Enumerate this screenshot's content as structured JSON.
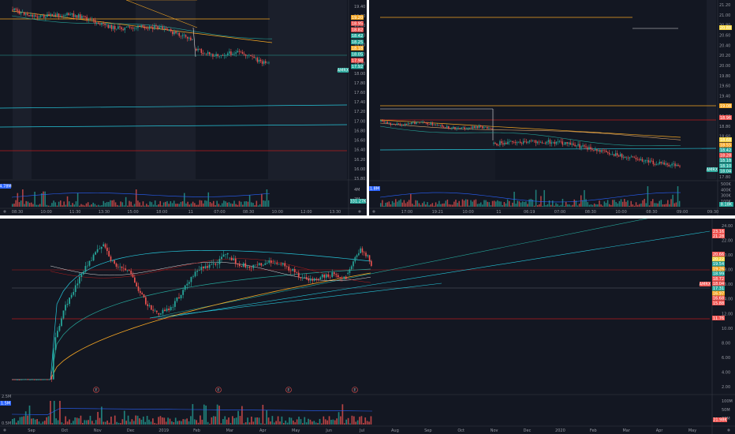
{
  "top_left": {
    "price_ticks": [
      "19.40",
      "19.20",
      "19.00",
      "18.80",
      "18.60",
      "18.40",
      "18.20",
      "18.00",
      "17.80",
      "17.60",
      "17.40",
      "17.20",
      "17.00",
      "16.80",
      "16.60",
      "16.40",
      "16.20",
      "16.00",
      "15.80"
    ],
    "price_tags": [
      "19.20",
      "18.95",
      "18.82",
      "18.42",
      "18.25",
      "18.18",
      "18.05",
      "17.98",
      "17.92"
    ],
    "ticker_tag": "AMRX",
    "vol_ticks": [
      "4M",
      "2M"
    ],
    "vol_left_tag": "4.78M",
    "vol_right_tag": "331.27K",
    "time_ticks": [
      "08:30",
      "10:00",
      "11:30",
      "13:30",
      "15:00",
      "18:00",
      "11",
      "07:00",
      "08:30",
      "10:00",
      "12:00",
      "13:30"
    ]
  },
  "top_right": {
    "price_ticks": [
      "21.20",
      "21.00",
      "20.80",
      "20.60",
      "20.40",
      "20.20",
      "20.00",
      "19.80",
      "19.60",
      "19.40",
      "19.20",
      "19.00",
      "18.80",
      "18.60",
      "18.40",
      "18.20",
      "18.00",
      "17.80"
    ],
    "price_tags": [
      "20.88",
      "19.08",
      "18.96",
      "18.68",
      "18.55",
      "18.42",
      "18.28",
      "18.18",
      "18.10",
      "18.04"
    ],
    "ticker_tag": "AMRX",
    "vol_ticks": [
      "500K",
      "400K",
      "300K",
      "100K"
    ],
    "vol_left_tag": "1.8M",
    "vol_right_tag": "8.18K",
    "time_ticks": [
      "17:00",
      "19:21",
      "10:00",
      "11",
      "06:19",
      "07:00",
      "08:30",
      "10:00",
      "08:30",
      "09:00",
      "09:30"
    ]
  },
  "bottom": {
    "price_ticks": [
      "24.00",
      "22.00",
      "20.00",
      "18.00",
      "16.00",
      "14.00",
      "12.00",
      "10.00",
      "8.00",
      "6.00",
      "4.00",
      "2.00"
    ],
    "price_tags": [
      "23.16",
      "21.28",
      "20.66",
      "20.22",
      "19.54",
      "19.26",
      "18.99",
      "18.72",
      "18.04",
      "17.31",
      "16.97",
      "16.68",
      "15.88",
      "11.76"
    ],
    "ticker_tag": "AMRX",
    "earnings_markers": [
      "E",
      "E",
      "E",
      "E"
    ],
    "vol_ticks": [
      "100M",
      "50M",
      "20M"
    ],
    "vol_left_tag": "1.5M",
    "vol_right_tag": "21.98K",
    "vol_top_left": "2.5M",
    "vol_bottom_left": "0.5M",
    "time_ticks": [
      "Sep",
      "Oct",
      "Nov",
      "Dec",
      "2019",
      "Feb",
      "Mar",
      "Apr",
      "May",
      "Jun",
      "Jul",
      "Aug",
      "Sep",
      "Oct",
      "Nov",
      "Dec",
      "2020",
      "Feb",
      "Mar",
      "Apr",
      "May"
    ]
  },
  "colors": {
    "up": "#26a69a",
    "down": "#ef5350",
    "orange": "#f5a623",
    "blue": "#2962ff",
    "teal": "#26c6da",
    "red_line": "#b71c1c"
  }
}
